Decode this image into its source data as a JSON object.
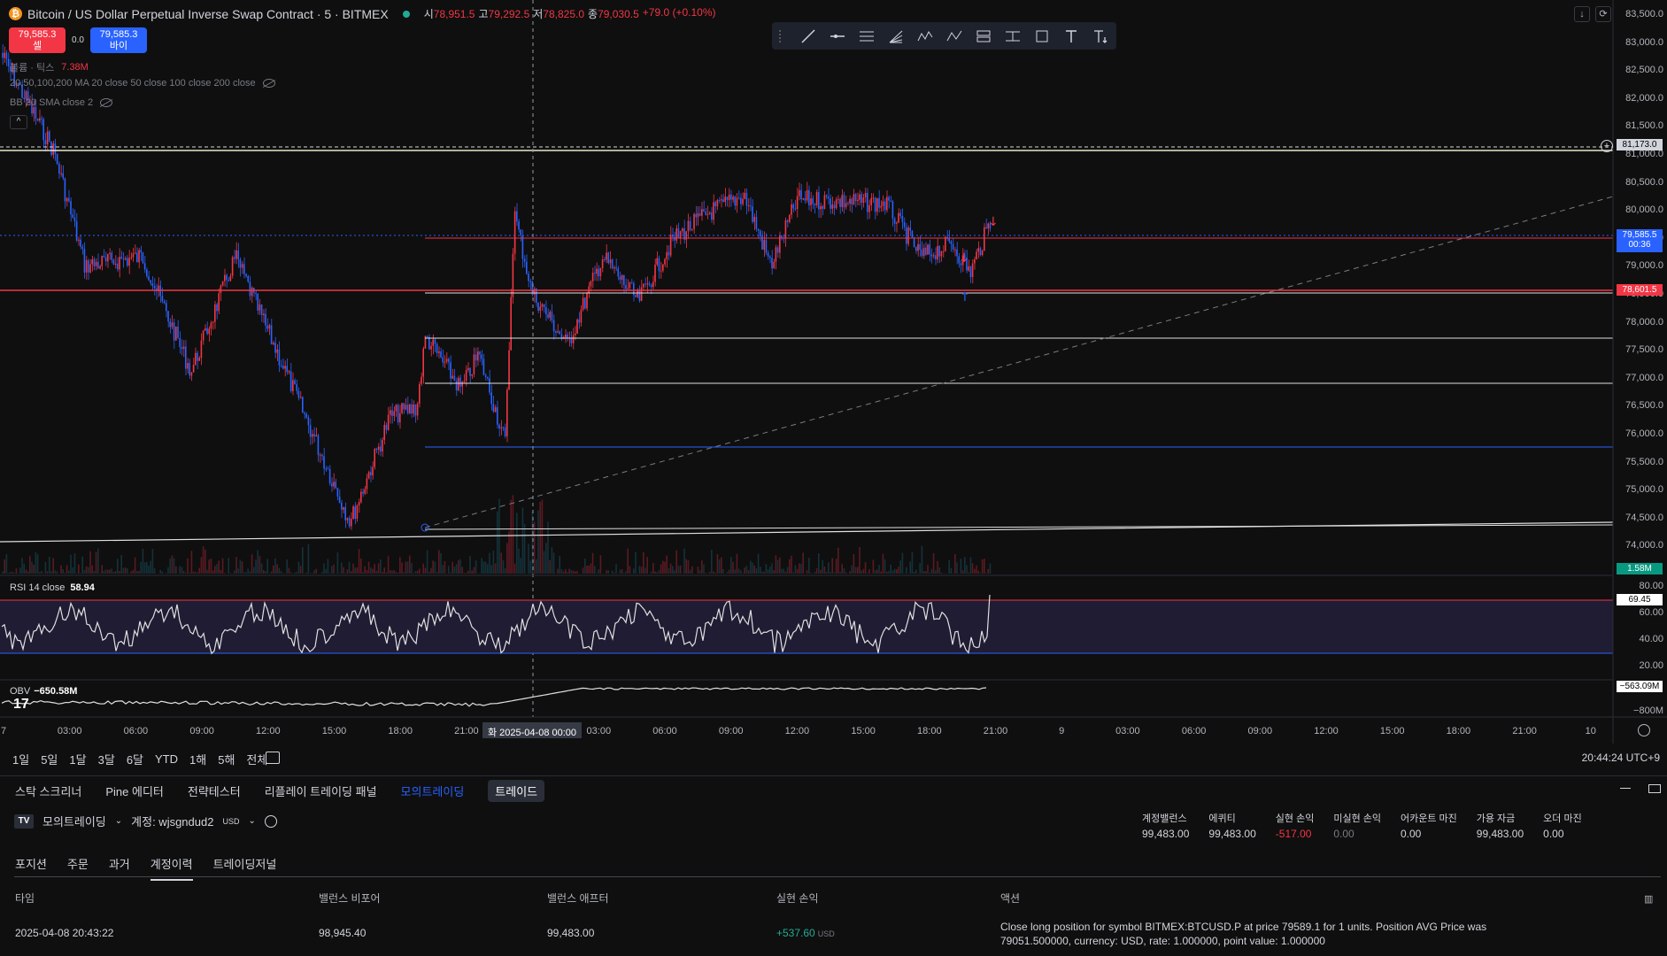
{
  "legend": {
    "symbol": "Bitcoin / US Dollar Perpetual Inverse Swap Contract · 5 · BITMEX",
    "coin_glyph": "₿",
    "ohlc": [
      {
        "k": "시",
        "v": "78,951.5"
      },
      {
        "k": "고",
        "v": "79,292.5"
      },
      {
        "k": "저",
        "v": "78,825.0"
      },
      {
        "k": "종",
        "v": "79,030.5"
      },
      {
        "k": "",
        "v": "+79.0 (+0.10%)"
      }
    ]
  },
  "trade": {
    "sell_price": "79,585.3",
    "sell_label": "셀",
    "spread": "0.0",
    "buy_price": "79,585.3",
    "buy_label": "바이"
  },
  "indicators": {
    "volume": "볼륨 · 틱스",
    "volume_value": "7.38M",
    "ma": "20,50,100,200 MA 20 close 50 close 100 close 200 close",
    "bb": "BB 20 SMA close 2",
    "collapse": "^"
  },
  "price_axis": [
    "83,500.0",
    "83,000.0",
    "82,500.0",
    "82,000.0",
    "81,500.0",
    "81,000.0",
    "80,500.0",
    "80,000.0",
    "79,500.0",
    "79,000.0",
    "78,500.0",
    "78,000.0",
    "77,500.0",
    "77,000.0",
    "76,500.0",
    "76,000.0",
    "75,500.0",
    "75,000.0",
    "74,500.0",
    "74,000.0"
  ],
  "price_tags": {
    "alert": "81,173.0",
    "last": "79,585.5",
    "countdown": "00:36",
    "level": "78,601.5",
    "volume": "1.58M"
  },
  "rsi": {
    "label": "RSI 14 close",
    "value": "58.94",
    "tag": "69.45",
    "axis": [
      "80.00",
      "60.00",
      "40.00",
      "20.00"
    ]
  },
  "obv": {
    "label": "OBV",
    "value": "−650.58M",
    "tag": "−563.09M",
    "axis": "−800M"
  },
  "time_axis": [
    "7",
    "03:00",
    "06:00",
    "09:00",
    "12:00",
    "15:00",
    "18:00",
    "21:00",
    "00:00",
    "03:00",
    "06:00",
    "09:00",
    "12:00",
    "15:00",
    "18:00",
    "21:00",
    "9",
    "03:00",
    "06:00",
    "09:00",
    "12:00",
    "15:00",
    "18:00",
    "21:00",
    "10"
  ],
  "time_highlight": "화 2025-04-08  00:00",
  "ranges": [
    "1일",
    "5일",
    "1달",
    "3달",
    "6달",
    "YTD",
    "1해",
    "5해",
    "전체"
  ],
  "clock": "20:44:24 UTC+9",
  "panel_tabs": [
    "스탁 스크리너",
    "Pine 에디터",
    "전략테스터",
    "리플레이 트레이딩 패널",
    "모의트레이딩",
    "트레이드"
  ],
  "account": {
    "name": "모의트레이딩",
    "account_label": "계정: wjsgndud2",
    "currency": "USD"
  },
  "stats": [
    {
      "label": "계정밸런스",
      "value": "99,483.00"
    },
    {
      "label": "에퀴티",
      "value": "99,483.00"
    },
    {
      "label": "실현 손익",
      "value": "-517.00"
    },
    {
      "label": "미실현 손익",
      "value": "0.00"
    },
    {
      "label": "어카운트 마진",
      "value": "0.00"
    },
    {
      "label": "가용 자금",
      "value": "99,483.00"
    },
    {
      "label": "오더 마진",
      "value": "0.00"
    }
  ],
  "sub_tabs": [
    "포지션",
    "주문",
    "과거",
    "계정이력",
    "트레이딩저널"
  ],
  "table": {
    "headers": [
      "타임",
      "밸런스 비포어",
      "밸런스 애프터",
      "실현 손익",
      "액션"
    ],
    "row": {
      "time": "2025-04-08 20:43:22",
      "before": "98,945.40",
      "after": "99,483.00",
      "pnl": "+537.60",
      "pnl_unit": "USD",
      "action": "Close long position for symbol BITMEX:BTCUSD.P at price 79589.1 for 1 units. Position AVG Price was 79051.500000, currency: USD, rate: 1.000000, point value: 1.000000"
    }
  },
  "colors": {
    "up": "#f23645",
    "down": "#2962ff",
    "bg": "#0f0f0f",
    "rsi_band": "#1f1c33"
  }
}
